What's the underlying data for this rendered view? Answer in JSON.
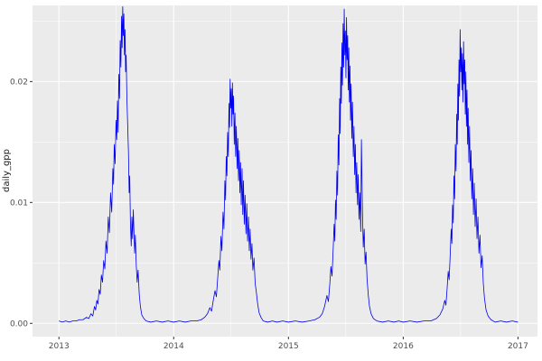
{
  "chart_data": {
    "type": "line",
    "title": "",
    "xlabel": "",
    "ylabel": "daily_gpp",
    "legend": "none",
    "grid": true,
    "xlim": [
      2012.77,
      2017.17
    ],
    "ylim": [
      -0.0011,
      0.0263
    ],
    "x_ticks": {
      "values": [
        2013,
        2014,
        2015,
        2016,
        2017
      ],
      "labels": [
        "2013",
        "2014",
        "2015",
        "2016",
        "2017"
      ]
    },
    "y_ticks": {
      "values": [
        0,
        0.01,
        0.02
      ],
      "labels": [
        "0.00",
        "0.01",
        "0.02"
      ]
    },
    "x_minor": [
      2013.5,
      2014.5,
      2015.5,
      2016.5
    ],
    "y_minor": [
      0.005,
      0.015,
      0.025
    ],
    "style": {
      "panel_bg": "#EBEBEB",
      "grid_color": "#FFFFFF",
      "line_color": "#0000EE",
      "tick_color": "#333333",
      "tick_label_color": "#4D4D4D",
      "axis_title_color": "#1A1A1A",
      "background": "#FFFFFF"
    },
    "series": [
      {
        "name": "daily_gpp",
        "points": [
          [
            2013.0,
            0.0002
          ],
          [
            2013.03,
            0.0001
          ],
          [
            2013.06,
            0.0002
          ],
          [
            2013.09,
            0.0001
          ],
          [
            2013.12,
            0.0002
          ],
          [
            2013.15,
            0.0002
          ],
          [
            2013.18,
            0.0003
          ],
          [
            2013.21,
            0.0003
          ],
          [
            2013.24,
            0.0005
          ],
          [
            2013.26,
            0.0004
          ],
          [
            2013.28,
            0.0008
          ],
          [
            2013.295,
            0.0006
          ],
          [
            2013.31,
            0.0014
          ],
          [
            2013.32,
            0.0011
          ],
          [
            2013.33,
            0.0019
          ],
          [
            2013.34,
            0.0016
          ],
          [
            2013.35,
            0.0028
          ],
          [
            2013.36,
            0.0024
          ],
          [
            2013.37,
            0.004
          ],
          [
            2013.38,
            0.0034
          ],
          [
            2013.39,
            0.0052
          ],
          [
            2013.4,
            0.0045
          ],
          [
            2013.41,
            0.0068
          ],
          [
            2013.42,
            0.0058
          ],
          [
            2013.43,
            0.0088
          ],
          [
            2013.44,
            0.0075
          ],
          [
            2013.45,
            0.0108
          ],
          [
            2013.46,
            0.0092
          ],
          [
            2013.47,
            0.0128
          ],
          [
            2013.476,
            0.0115
          ],
          [
            2013.482,
            0.0148
          ],
          [
            2013.49,
            0.0132
          ],
          [
            2013.498,
            0.0168
          ],
          [
            2013.504,
            0.0152
          ],
          [
            2013.51,
            0.0184
          ],
          [
            2013.516,
            0.0158
          ],
          [
            2013.522,
            0.0206
          ],
          [
            2013.528,
            0.0186
          ],
          [
            2013.534,
            0.0234
          ],
          [
            2013.54,
            0.0212
          ],
          [
            2013.546,
            0.0254
          ],
          [
            2013.551,
            0.0228
          ],
          [
            2013.556,
            0.0262
          ],
          [
            2013.561,
            0.0238
          ],
          [
            2013.566,
            0.0256
          ],
          [
            2013.571,
            0.0222
          ],
          [
            2013.576,
            0.0243
          ],
          [
            2013.581,
            0.0208
          ],
          [
            2013.586,
            0.0222
          ],
          [
            2013.592,
            0.0188
          ],
          [
            2013.598,
            0.0168
          ],
          [
            2013.606,
            0.0142
          ],
          [
            2013.612,
            0.0108
          ],
          [
            2013.617,
            0.0122
          ],
          [
            2013.623,
            0.0084
          ],
          [
            2013.63,
            0.0064
          ],
          [
            2013.636,
            0.0088
          ],
          [
            2013.642,
            0.007
          ],
          [
            2013.648,
            0.0094
          ],
          [
            2013.654,
            0.0076
          ],
          [
            2013.66,
            0.0058
          ],
          [
            2013.666,
            0.0073
          ],
          [
            2013.674,
            0.0048
          ],
          [
            2013.682,
            0.0034
          ],
          [
            2013.69,
            0.0044
          ],
          [
            2013.7,
            0.0024
          ],
          [
            2013.71,
            0.0014
          ],
          [
            2013.722,
            0.0007
          ],
          [
            2013.74,
            0.0004
          ],
          [
            2013.76,
            0.0002
          ],
          [
            2013.8,
            0.0001
          ],
          [
            2013.85,
            0.0002
          ],
          [
            2013.9,
            0.0001
          ],
          [
            2013.95,
            0.0002
          ],
          [
            2014.0,
            0.0001
          ],
          [
            2014.05,
            0.0002
          ],
          [
            2014.1,
            0.0001
          ],
          [
            2014.15,
            0.0002
          ],
          [
            2014.2,
            0.0002
          ],
          [
            2014.24,
            0.0003
          ],
          [
            2014.27,
            0.0005
          ],
          [
            2014.295,
            0.0008
          ],
          [
            2014.315,
            0.0013
          ],
          [
            2014.33,
            0.001
          ],
          [
            2014.345,
            0.0019
          ],
          [
            2014.36,
            0.0027
          ],
          [
            2014.372,
            0.0022
          ],
          [
            2014.384,
            0.0038
          ],
          [
            2014.394,
            0.0052
          ],
          [
            2014.402,
            0.0044
          ],
          [
            2014.412,
            0.0072
          ],
          [
            2014.42,
            0.006
          ],
          [
            2014.43,
            0.0092
          ],
          [
            2014.438,
            0.0078
          ],
          [
            2014.446,
            0.0118
          ],
          [
            2014.452,
            0.0102
          ],
          [
            2014.458,
            0.0138
          ],
          [
            2014.464,
            0.0122
          ],
          [
            2014.47,
            0.0158
          ],
          [
            2014.476,
            0.0138
          ],
          [
            2014.482,
            0.0182
          ],
          [
            2014.487,
            0.0162
          ],
          [
            2014.492,
            0.0202
          ],
          [
            2014.497,
            0.0178
          ],
          [
            2014.502,
            0.0194
          ],
          [
            2014.507,
            0.0163
          ],
          [
            2014.512,
            0.0199
          ],
          [
            2014.517,
            0.0173
          ],
          [
            2014.522,
            0.0188
          ],
          [
            2014.528,
            0.0148
          ],
          [
            2014.534,
            0.0174
          ],
          [
            2014.54,
            0.0138
          ],
          [
            2014.546,
            0.0163
          ],
          [
            2014.553,
            0.0128
          ],
          [
            2014.559,
            0.0153
          ],
          [
            2014.565,
            0.0118
          ],
          [
            2014.571,
            0.0143
          ],
          [
            2014.577,
            0.0108
          ],
          [
            2014.583,
            0.0133
          ],
          [
            2014.589,
            0.0098
          ],
          [
            2014.596,
            0.0128
          ],
          [
            2014.602,
            0.009
          ],
          [
            2014.608,
            0.0118
          ],
          [
            2014.615,
            0.0082
          ],
          [
            2014.622,
            0.0106
          ],
          [
            2014.63,
            0.0074
          ],
          [
            2014.637,
            0.0099
          ],
          [
            2014.644,
            0.0068
          ],
          [
            2014.652,
            0.0088
          ],
          [
            2014.659,
            0.006
          ],
          [
            2014.666,
            0.0078
          ],
          [
            2014.674,
            0.0053
          ],
          [
            2014.682,
            0.0066
          ],
          [
            2014.69,
            0.0044
          ],
          [
            2014.7,
            0.0054
          ],
          [
            2014.71,
            0.0033
          ],
          [
            2014.72,
            0.0026
          ],
          [
            2014.732,
            0.0016
          ],
          [
            2014.744,
            0.0009
          ],
          [
            2014.76,
            0.0005
          ],
          [
            2014.78,
            0.0002
          ],
          [
            2014.82,
            0.0001
          ],
          [
            2014.86,
            0.0002
          ],
          [
            2014.9,
            0.0001
          ],
          [
            2014.95,
            0.0002
          ],
          [
            2015.0,
            0.0001
          ],
          [
            2015.06,
            0.0002
          ],
          [
            2015.12,
            0.0001
          ],
          [
            2015.18,
            0.0002
          ],
          [
            2015.23,
            0.0003
          ],
          [
            2015.27,
            0.0005
          ],
          [
            2015.295,
            0.0008
          ],
          [
            2015.315,
            0.0014
          ],
          [
            2015.335,
            0.0023
          ],
          [
            2015.348,
            0.0018
          ],
          [
            2015.36,
            0.0032
          ],
          [
            2015.37,
            0.0047
          ],
          [
            2015.38,
            0.0039
          ],
          [
            2015.39,
            0.0062
          ],
          [
            2015.398,
            0.0082
          ],
          [
            2015.404,
            0.0068
          ],
          [
            2015.41,
            0.0102
          ],
          [
            2015.416,
            0.0086
          ],
          [
            2015.422,
            0.0126
          ],
          [
            2015.428,
            0.0106
          ],
          [
            2015.434,
            0.0156
          ],
          [
            2015.44,
            0.0131
          ],
          [
            2015.446,
            0.0186
          ],
          [
            2015.451,
            0.0157
          ],
          [
            2015.456,
            0.0212
          ],
          [
            2015.461,
            0.0182
          ],
          [
            2015.466,
            0.0232
          ],
          [
            2015.471,
            0.0197
          ],
          [
            2015.476,
            0.0248
          ],
          [
            2015.481,
            0.0212
          ],
          [
            2015.486,
            0.026
          ],
          [
            2015.491,
            0.0222
          ],
          [
            2015.496,
            0.0242
          ],
          [
            2015.501,
            0.0203
          ],
          [
            2015.506,
            0.0253
          ],
          [
            2015.511,
            0.0218
          ],
          [
            2015.516,
            0.0238
          ],
          [
            2015.521,
            0.0193
          ],
          [
            2015.526,
            0.0228
          ],
          [
            2015.531,
            0.0183
          ],
          [
            2015.536,
            0.0213
          ],
          [
            2015.541,
            0.0168
          ],
          [
            2015.546,
            0.0198
          ],
          [
            2015.552,
            0.0153
          ],
          [
            2015.558,
            0.0183
          ],
          [
            2015.565,
            0.0138
          ],
          [
            2015.571,
            0.0163
          ],
          [
            2015.577,
            0.0123
          ],
          [
            2015.583,
            0.0148
          ],
          [
            2015.589,
            0.0108
          ],
          [
            2015.595,
            0.0133
          ],
          [
            2015.602,
            0.0098
          ],
          [
            2015.608,
            0.0123
          ],
          [
            2015.615,
            0.0086
          ],
          [
            2015.622,
            0.0108
          ],
          [
            2015.63,
            0.0076
          ],
          [
            2015.636,
            0.0152
          ],
          [
            2015.641,
            0.0118
          ],
          [
            2015.646,
            0.0088
          ],
          [
            2015.652,
            0.0063
          ],
          [
            2015.66,
            0.0078
          ],
          [
            2015.668,
            0.0049
          ],
          [
            2015.676,
            0.0059
          ],
          [
            2015.685,
            0.0037
          ],
          [
            2015.695,
            0.0024
          ],
          [
            2015.706,
            0.0014
          ],
          [
            2015.72,
            0.0008
          ],
          [
            2015.74,
            0.0004
          ],
          [
            2015.77,
            0.0002
          ],
          [
            2015.82,
            0.0001
          ],
          [
            2015.87,
            0.0002
          ],
          [
            2015.92,
            0.0001
          ],
          [
            2015.96,
            0.0002
          ],
          [
            2016.0,
            0.0001
          ],
          [
            2016.06,
            0.0002
          ],
          [
            2016.12,
            0.0001
          ],
          [
            2016.18,
            0.0002
          ],
          [
            2016.24,
            0.0002
          ],
          [
            2016.29,
            0.0004
          ],
          [
            2016.32,
            0.0007
          ],
          [
            2016.345,
            0.0012
          ],
          [
            2016.362,
            0.0019
          ],
          [
            2016.372,
            0.0015
          ],
          [
            2016.382,
            0.0028
          ],
          [
            2016.392,
            0.0043
          ],
          [
            2016.4,
            0.0036
          ],
          [
            2016.41,
            0.0058
          ],
          [
            2016.418,
            0.0078
          ],
          [
            2016.424,
            0.0066
          ],
          [
            2016.43,
            0.0098
          ],
          [
            2016.436,
            0.0083
          ],
          [
            2016.442,
            0.0122
          ],
          [
            2016.448,
            0.0103
          ],
          [
            2016.454,
            0.0148
          ],
          [
            2016.46,
            0.0126
          ],
          [
            2016.466,
            0.0173
          ],
          [
            2016.471,
            0.0148
          ],
          [
            2016.476,
            0.0198
          ],
          [
            2016.481,
            0.0168
          ],
          [
            2016.486,
            0.0218
          ],
          [
            2016.491,
            0.0188
          ],
          [
            2016.496,
            0.0243
          ],
          [
            2016.501,
            0.0208
          ],
          [
            2016.506,
            0.0228
          ],
          [
            2016.511,
            0.0193
          ],
          [
            2016.516,
            0.0223
          ],
          [
            2016.521,
            0.0183
          ],
          [
            2016.526,
            0.0233
          ],
          [
            2016.531,
            0.0198
          ],
          [
            2016.536,
            0.0218
          ],
          [
            2016.541,
            0.0173
          ],
          [
            2016.546,
            0.0208
          ],
          [
            2016.551,
            0.0163
          ],
          [
            2016.556,
            0.0193
          ],
          [
            2016.561,
            0.0148
          ],
          [
            2016.566,
            0.0178
          ],
          [
            2016.572,
            0.0133
          ],
          [
            2016.578,
            0.0163
          ],
          [
            2016.585,
            0.0118
          ],
          [
            2016.591,
            0.0143
          ],
          [
            2016.598,
            0.0103
          ],
          [
            2016.605,
            0.0128
          ],
          [
            2016.612,
            0.009
          ],
          [
            2016.619,
            0.0116
          ],
          [
            2016.627,
            0.008
          ],
          [
            2016.635,
            0.0103
          ],
          [
            2016.643,
            0.007
          ],
          [
            2016.651,
            0.0088
          ],
          [
            2016.66,
            0.0058
          ],
          [
            2016.669,
            0.0073
          ],
          [
            2016.678,
            0.0046
          ],
          [
            2016.688,
            0.0056
          ],
          [
            2016.698,
            0.0033
          ],
          [
            2016.708,
            0.0021
          ],
          [
            2016.722,
            0.0011
          ],
          [
            2016.74,
            0.0006
          ],
          [
            2016.765,
            0.0003
          ],
          [
            2016.8,
            0.0001
          ],
          [
            2016.85,
            0.0002
          ],
          [
            2016.9,
            0.0001
          ],
          [
            2016.95,
            0.0002
          ],
          [
            2017.0,
            0.0001
          ]
        ]
      }
    ]
  }
}
